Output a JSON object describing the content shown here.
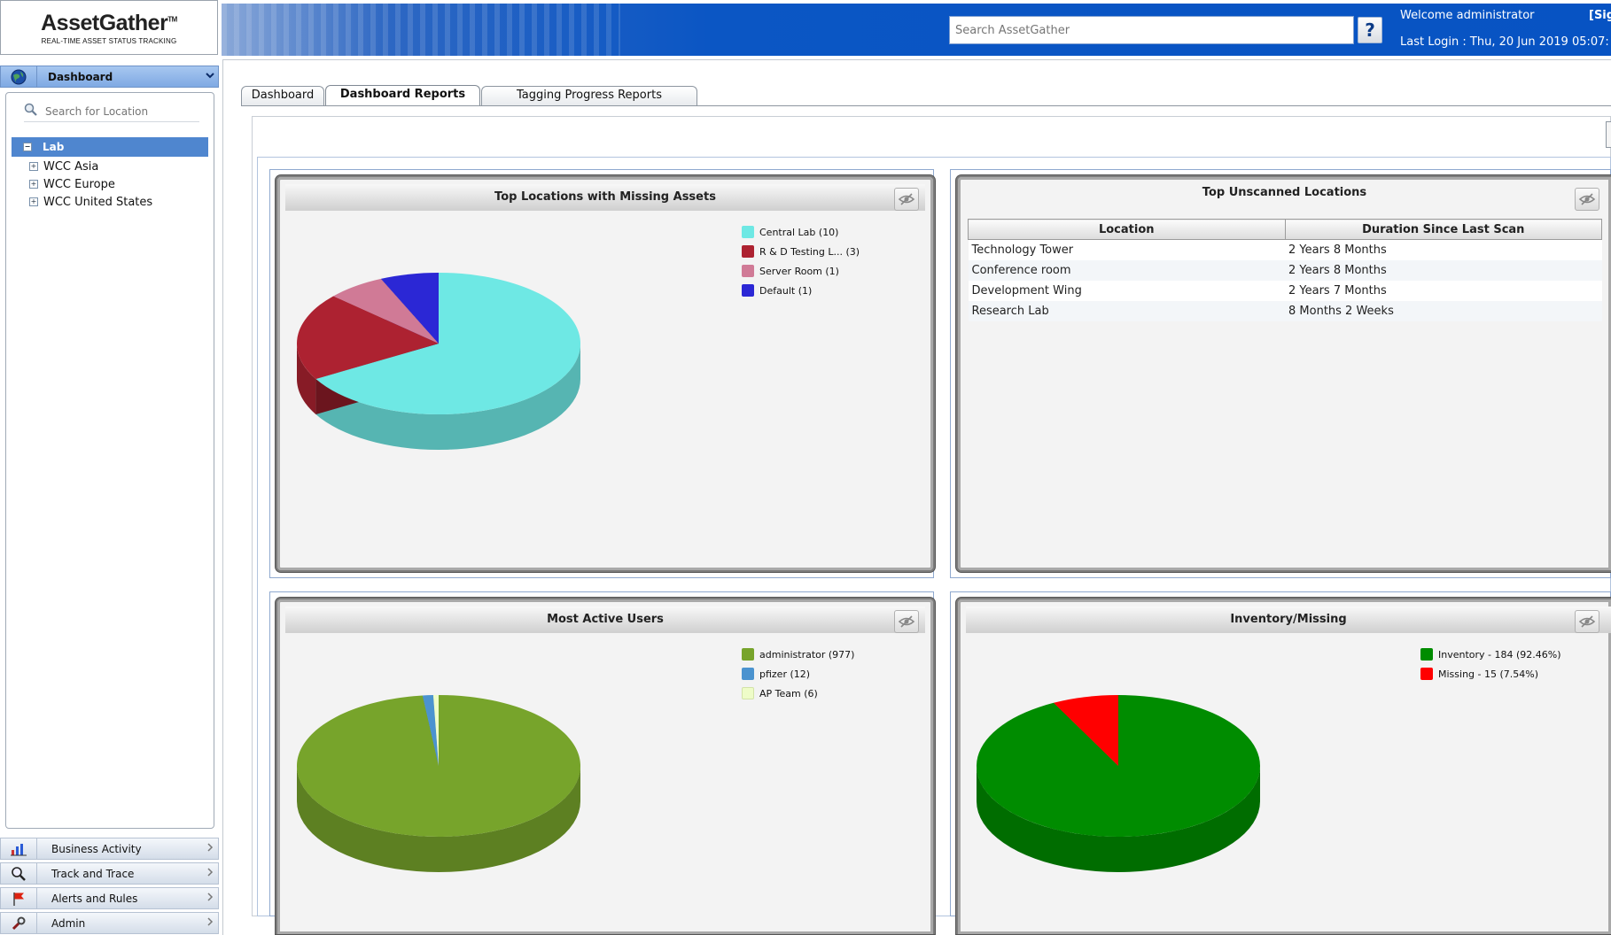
{
  "brand": {
    "name": "AssetGather",
    "tm": "TM",
    "tagline": "REAL-TIME ASSET STATUS TRACKING"
  },
  "header": {
    "search_placeholder": "Search AssetGather",
    "help_label": "?",
    "welcome": "Welcome  administrator",
    "signout": "[Sig",
    "last_login": "Last Login :   Thu, 20 Jun 2019 05:07:"
  },
  "sidebar": {
    "dashboard_label": "Dashboard",
    "location_search_placeholder": "Search for Location",
    "tree": [
      {
        "label": "Lab",
        "expander": "−"
      },
      {
        "label": "WCC Asia",
        "expander": "+"
      },
      {
        "label": "WCC Europe",
        "expander": "+"
      },
      {
        "label": "WCC United States",
        "expander": "+"
      }
    ],
    "sections": [
      {
        "label": "Business Activity",
        "icon": "bar-chart-icon"
      },
      {
        "label": "Track and Trace",
        "icon": "magnifier-icon"
      },
      {
        "label": "Alerts and Rules",
        "icon": "flag-icon"
      },
      {
        "label": "Admin",
        "icon": "wrench-icon"
      }
    ]
  },
  "tabs": [
    {
      "label": "Dashboard"
    },
    {
      "label": "Dashboard Reports"
    },
    {
      "label": "Tagging Progress Reports"
    }
  ],
  "panels": {
    "missing": {
      "title": "Top Locations with Missing Assets",
      "legend": [
        "Central Lab (10)",
        "R & D Testing L... (3)",
        "Server Room (1)",
        "Default (1)"
      ]
    },
    "unscanned": {
      "title": "Top Unscanned Locations",
      "columns": [
        "Location",
        "Duration Since Last Scan"
      ],
      "rows": [
        [
          "Technology Tower",
          "2 Years 8 Months"
        ],
        [
          "Conference room",
          "2 Years 8 Months"
        ],
        [
          "Development Wing",
          "2 Years 7 Months"
        ],
        [
          "Research Lab",
          "8 Months 2 Weeks"
        ]
      ]
    },
    "users": {
      "title": "Most Active Users",
      "legend": [
        "administrator (977)",
        "pfizer (12)",
        "AP Team (6)"
      ]
    },
    "inventory": {
      "title": "Inventory/Missing",
      "legend": [
        "Inventory - 184 (92.46%)",
        "Missing - 15 (7.54%)"
      ]
    }
  },
  "chart_data": [
    {
      "type": "pie",
      "title": "Top Locations with Missing Assets",
      "categories": [
        "Central Lab",
        "R & D Testing L...",
        "Server Room",
        "Default"
      ],
      "values": [
        10,
        3,
        1,
        1
      ],
      "colors": [
        "#6ee8e4",
        "#ad2231",
        "#d07a96",
        "#2b27d5"
      ]
    },
    {
      "type": "pie",
      "title": "Most Active Users",
      "categories": [
        "administrator",
        "pfizer",
        "AP Team"
      ],
      "values": [
        977,
        12,
        6
      ],
      "colors": [
        "#77a42b",
        "#4b93cf",
        "#eefcc8"
      ]
    },
    {
      "type": "pie",
      "title": "Inventory/Missing",
      "categories": [
        "Inventory",
        "Missing"
      ],
      "values": [
        184,
        15
      ],
      "colors": [
        "#008c00",
        "#ff0000"
      ]
    }
  ]
}
